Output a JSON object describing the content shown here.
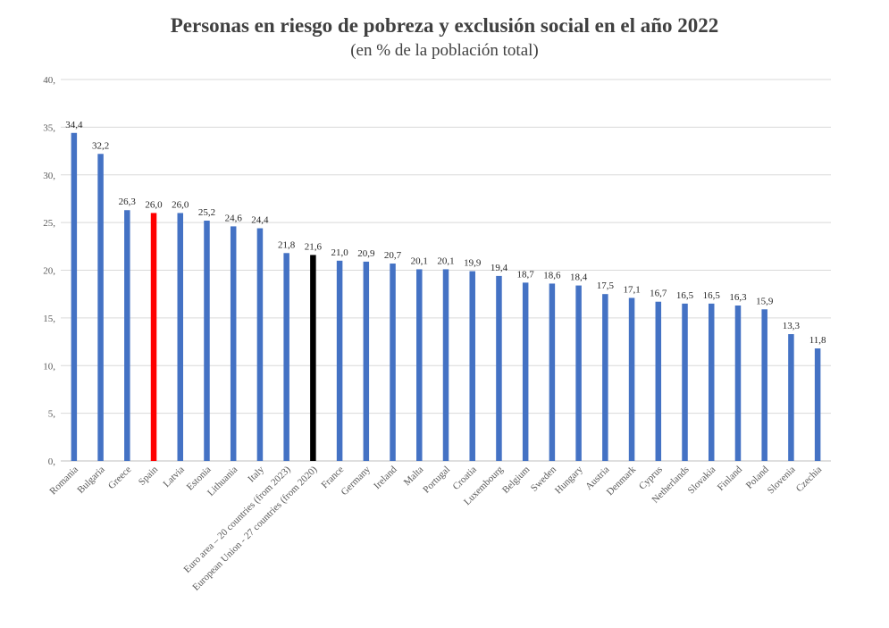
{
  "chart_data": {
    "type": "bar",
    "title": "Personas en riesgo de pobreza y exclusión social en el año 2022",
    "subtitle": "(en % de la población total)",
    "xlabel": "",
    "ylabel": "",
    "ylim": [
      0,
      40
    ],
    "yticks": [
      "0,",
      "5,",
      "10,",
      "15,",
      "20,",
      "25,",
      "30,",
      "35,",
      "40,"
    ],
    "ytick_values": [
      0,
      5,
      10,
      15,
      20,
      25,
      30,
      35,
      40
    ],
    "grid": true,
    "legend": "none",
    "categories": [
      "Romania",
      "Bulgaria",
      "Greece",
      "Spain",
      "Latvia",
      "Estonia",
      "Lithuania",
      "Italy",
      "Euro area – 20 countries (from 2023)",
      "European Union - 27 countries (from 2020)",
      "France",
      "Germany",
      "Ireland",
      "Malta",
      "Portugal",
      "Croatia",
      "Luxembourg",
      "Belgium",
      "Sweden",
      "Hungary",
      "Austria",
      "Denmark",
      "Cyprus",
      "Netherlands",
      "Slovakia",
      "Finland",
      "Poland",
      "Slovenia",
      "Czechia"
    ],
    "values": [
      34.4,
      32.2,
      26.3,
      26.0,
      26.0,
      25.2,
      24.6,
      24.4,
      21.8,
      21.6,
      21.0,
      20.9,
      20.7,
      20.1,
      20.1,
      19.9,
      19.4,
      18.7,
      18.6,
      18.4,
      17.5,
      17.1,
      16.7,
      16.5,
      16.5,
      16.3,
      15.9,
      13.3,
      11.8
    ],
    "data_labels": [
      "34,4",
      "32,2",
      "26,3",
      "26,0",
      "26,0",
      "25,2",
      "24,6",
      "24,4",
      "21,8",
      "21,6",
      "21,0",
      "20,9",
      "20,7",
      "20,1",
      "20,1",
      "19,9",
      "19,4",
      "18,7",
      "18,6",
      "18,4",
      "17,5",
      "17,1",
      "16,7",
      "16,5",
      "16,5",
      "16,3",
      "15,9",
      "13,3",
      "11,8"
    ],
    "colors": {
      "default": "#4472c4",
      "highlight": {
        "Spain": "#ff0000",
        "European Union - 27 countries (from 2020)": "#000000"
      },
      "grid": "#d9d9d9",
      "axis": "#bfbfbf"
    }
  }
}
